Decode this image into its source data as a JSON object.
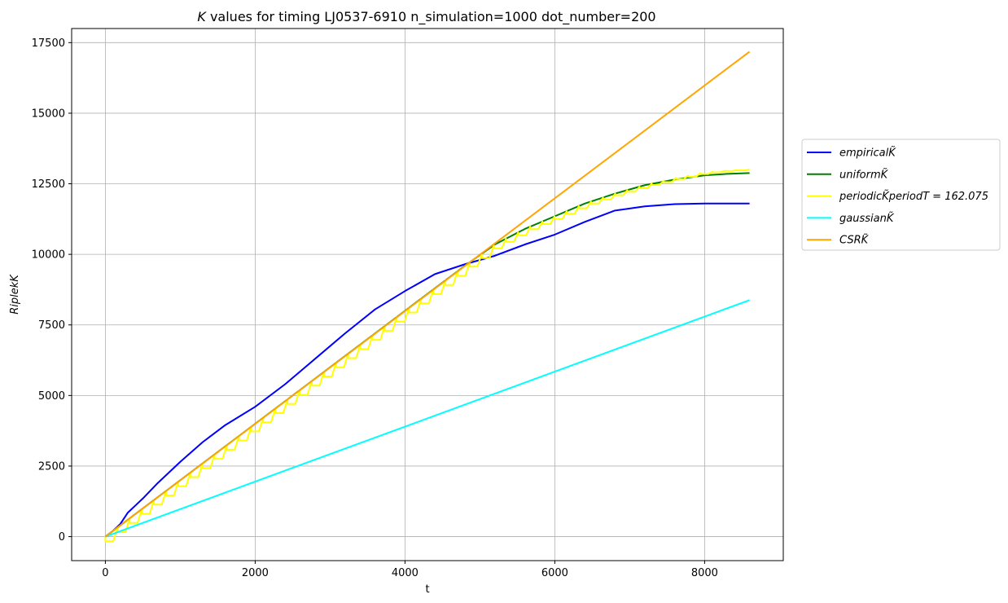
{
  "chart_data": {
    "type": "line",
    "title_italic": "K",
    "title_rest": " values for timing LJ0537-6910 n_simulation=1000 dot_number=200",
    "xlabel": "t",
    "ylabel": "RiplekK",
    "xlim": [
      -450,
      9050
    ],
    "ylim": [
      -850,
      18000
    ],
    "xticks": [
      0,
      2000,
      4000,
      6000,
      8000
    ],
    "yticks": [
      0,
      2500,
      5000,
      7500,
      10000,
      12500,
      15000,
      17500
    ],
    "grid": true,
    "legend_position": "center-right outside",
    "series": [
      {
        "name": "empiricalK̃",
        "color": "#0000ff",
        "style": "line",
        "x": [
          0,
          100,
          200,
          300,
          400,
          500,
          700,
          1000,
          1300,
          1600,
          2000,
          2400,
          2800,
          3200,
          3600,
          4000,
          4400,
          4800,
          5200,
          5600,
          6000,
          6400,
          6800,
          7200,
          7600,
          8000,
          8600
        ],
        "y": [
          0,
          200,
          450,
          850,
          1100,
          1350,
          1900,
          2650,
          3350,
          3950,
          4600,
          5400,
          6300,
          7200,
          8050,
          8700,
          9300,
          9650,
          9950,
          10350,
          10700,
          11150,
          11550,
          11700,
          11780,
          11800,
          11800
        ]
      },
      {
        "name": "uniformK̃",
        "color": "#008000",
        "style": "line",
        "x": [
          0,
          1000,
          2000,
          3000,
          4000,
          4800,
          5200,
          5600,
          6000,
          6400,
          6800,
          7200,
          7600,
          8000,
          8300,
          8600
        ],
        "y": [
          0,
          2000,
          4000,
          6000,
          8000,
          9600,
          10350,
          10900,
          11350,
          11800,
          12150,
          12450,
          12650,
          12800,
          12850,
          12880
        ]
      },
      {
        "name": "periodicK̃periodT = 162.075",
        "color": "#ffff00",
        "style": "step",
        "period": 162.075,
        "x": [
          0,
          1000,
          2000,
          3000,
          4000,
          4800,
          5200,
          5600,
          6000,
          6400,
          6800,
          7200,
          7600,
          8000,
          8300,
          8600
        ],
        "y": [
          0,
          2000,
          4000,
          6000,
          8000,
          9600,
          10350,
          10900,
          11350,
          11800,
          12150,
          12450,
          12700,
          12900,
          12970,
          13000
        ]
      },
      {
        "name": "gaussianK̃",
        "color": "#00ffff",
        "style": "line",
        "x": [
          0,
          8600
        ],
        "y": [
          0,
          8380
        ]
      },
      {
        "name": "CSRK̃",
        "color": "#ffa500",
        "style": "line",
        "x": [
          0,
          8600
        ],
        "y": [
          0,
          17180
        ]
      }
    ]
  }
}
